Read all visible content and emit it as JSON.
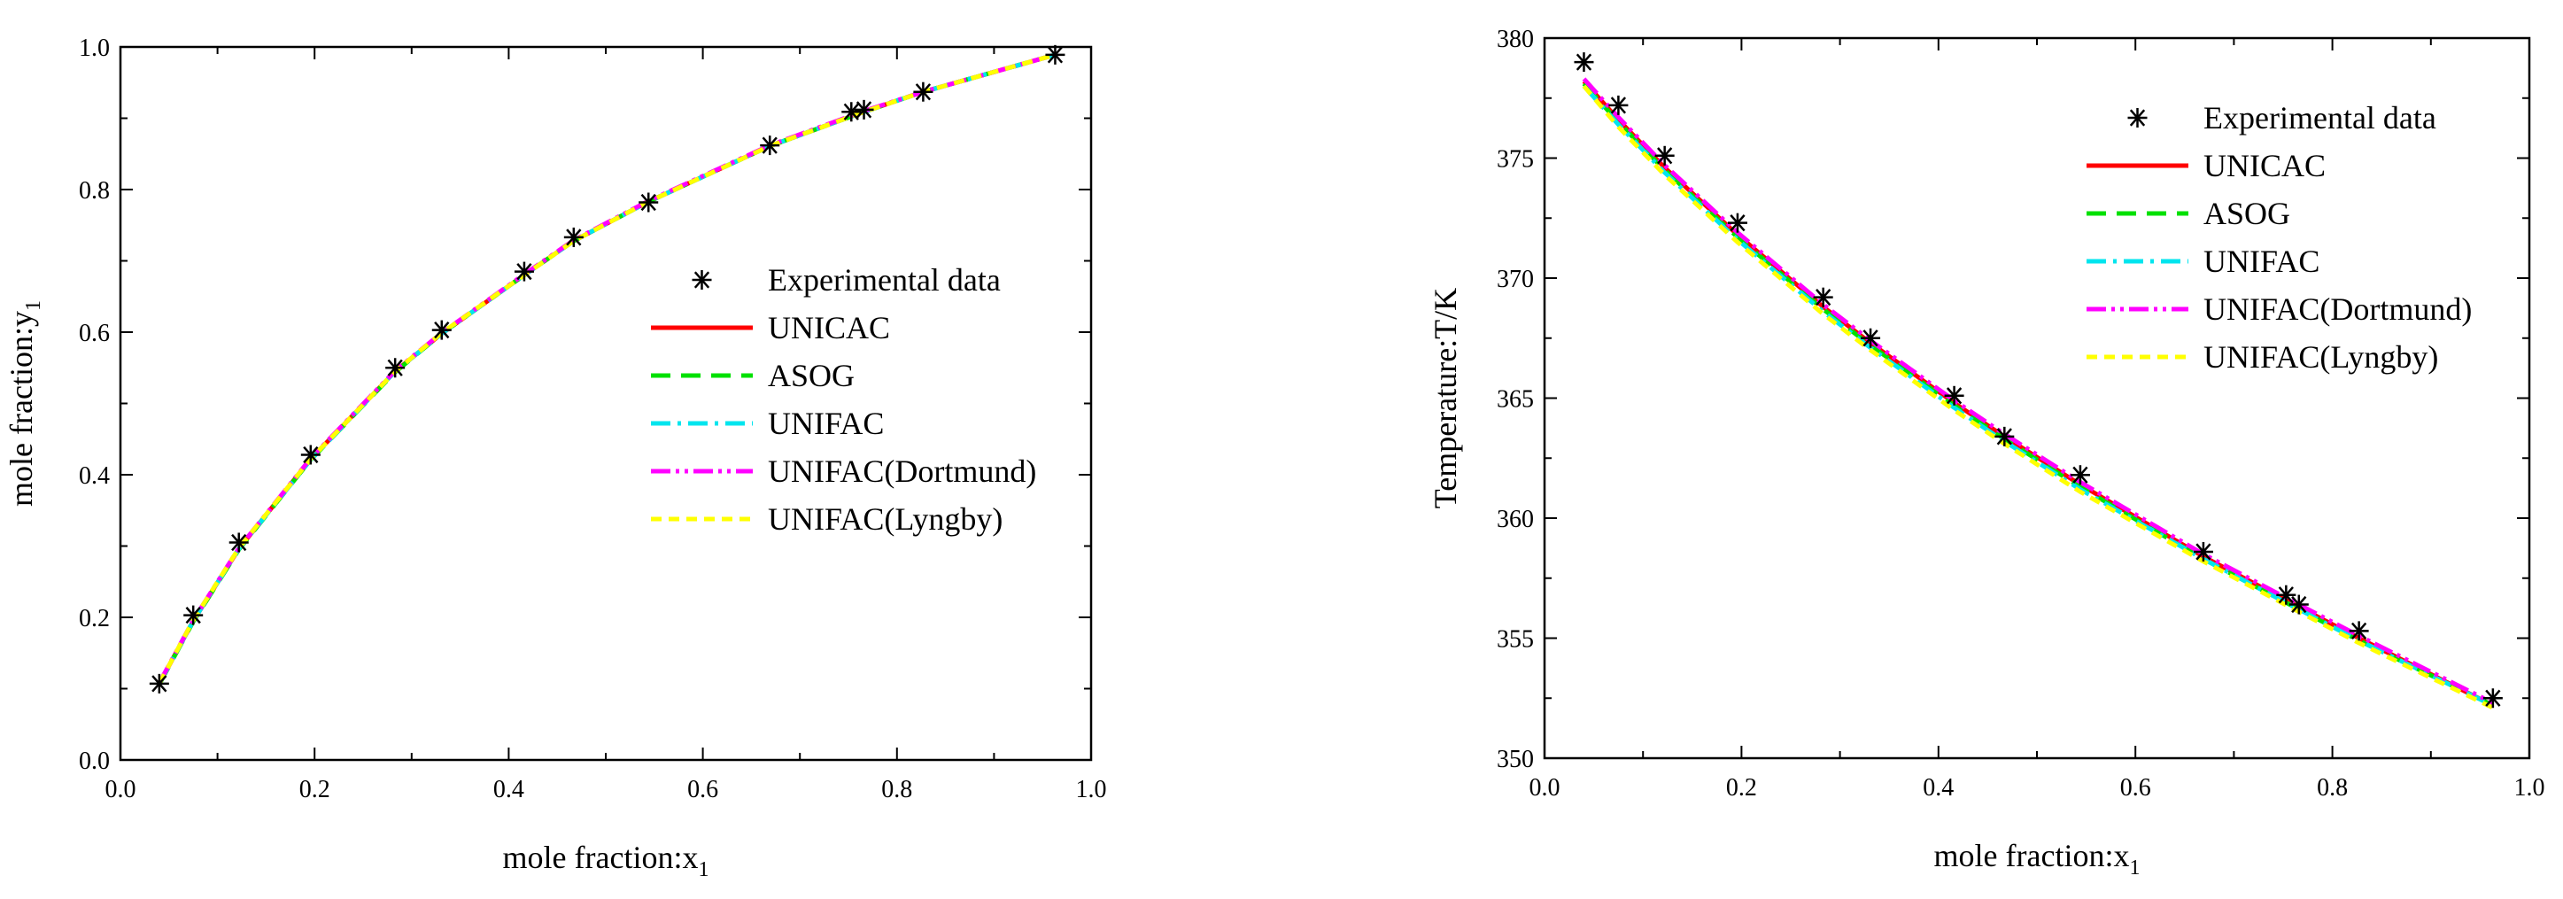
{
  "chart_data": [
    {
      "type": "line",
      "id": "xy",
      "xlabel": "mole fraction:x",
      "xlabel_sub": "1",
      "ylabel": "mole fraction:y",
      "ylabel_sub": "1",
      "xlim": [
        0.0,
        1.0
      ],
      "ylim": [
        0.0,
        1.0
      ],
      "x_ticks": [
        0.0,
        0.2,
        0.4,
        0.6,
        0.8,
        1.0
      ],
      "x_tick_labels": [
        "0.0",
        "0.2",
        "0.4",
        "0.6",
        "0.8",
        "1.0"
      ],
      "y_ticks": [
        0.0,
        0.2,
        0.4,
        0.6,
        0.8,
        1.0
      ],
      "y_tick_labels": [
        "0.0",
        "0.2",
        "0.4",
        "0.6",
        "0.8",
        "1.0"
      ],
      "grid": false,
      "legend_position": "center-right",
      "experimental": {
        "name": "Experimental data",
        "x": [
          0.04,
          0.075,
          0.122,
          0.196,
          0.283,
          0.331,
          0.416,
          0.467,
          0.544,
          0.669,
          0.753,
          0.766,
          0.827,
          0.963
        ],
        "y": [
          0.107,
          0.203,
          0.305,
          0.428,
          0.55,
          0.603,
          0.685,
          0.733,
          0.782,
          0.862,
          0.909,
          0.912,
          0.937,
          0.989
        ]
      },
      "series": [
        {
          "name": "UNICAC",
          "color": "#ff0000",
          "dash": "none",
          "x": [
            0.04,
            0.075,
            0.122,
            0.196,
            0.283,
            0.331,
            0.416,
            0.467,
            0.544,
            0.669,
            0.766,
            0.827,
            0.963
          ],
          "y": [
            0.107,
            0.195,
            0.296,
            0.422,
            0.545,
            0.598,
            0.68,
            0.728,
            0.783,
            0.861,
            0.909,
            0.937,
            0.989
          ]
        },
        {
          "name": "ASOG",
          "color": "#00e000",
          "dash": "22 12",
          "x": [
            0.04,
            0.075,
            0.122,
            0.196,
            0.283,
            0.331,
            0.416,
            0.467,
            0.544,
            0.669,
            0.766,
            0.827,
            0.963
          ],
          "y": [
            0.106,
            0.194,
            0.295,
            0.421,
            0.544,
            0.598,
            0.68,
            0.728,
            0.783,
            0.861,
            0.909,
            0.937,
            0.989
          ]
        },
        {
          "name": "UNIFAC",
          "color": "#00e5ee",
          "dash": "22 8 4 8",
          "x": [
            0.04,
            0.075,
            0.122,
            0.196,
            0.283,
            0.331,
            0.416,
            0.467,
            0.544,
            0.669,
            0.766,
            0.827,
            0.963
          ],
          "y": [
            0.107,
            0.195,
            0.296,
            0.421,
            0.545,
            0.598,
            0.68,
            0.728,
            0.783,
            0.861,
            0.909,
            0.937,
            0.989
          ]
        },
        {
          "name": "UNIFAC(Dortmund)",
          "color": "#ff00ff",
          "dash": "22 6 4 6 4 6",
          "x": [
            0.04,
            0.075,
            0.122,
            0.196,
            0.283,
            0.331,
            0.416,
            0.467,
            0.544,
            0.669,
            0.766,
            0.827,
            0.963
          ],
          "y": [
            0.108,
            0.196,
            0.297,
            0.423,
            0.546,
            0.599,
            0.681,
            0.729,
            0.784,
            0.862,
            0.91,
            0.937,
            0.989
          ]
        },
        {
          "name": "UNIFAC(Lyngby)",
          "color": "#ffff00",
          "dash": "12 8",
          "x": [
            0.04,
            0.075,
            0.122,
            0.196,
            0.283,
            0.331,
            0.416,
            0.467,
            0.544,
            0.669,
            0.766,
            0.827,
            0.963
          ],
          "y": [
            0.107,
            0.196,
            0.297,
            0.422,
            0.545,
            0.599,
            0.68,
            0.728,
            0.783,
            0.861,
            0.909,
            0.937,
            0.989
          ]
        }
      ]
    },
    {
      "type": "line",
      "id": "tx",
      "xlabel": "mole fraction:x",
      "xlabel_sub": "1",
      "ylabel": "Temperature:T/K",
      "ylabel_sub": "",
      "xlim": [
        0.0,
        1.0
      ],
      "ylim": [
        350,
        380
      ],
      "x_ticks": [
        0.0,
        0.2,
        0.4,
        0.6,
        0.8,
        1.0
      ],
      "x_tick_labels": [
        "0.0",
        "0.2",
        "0.4",
        "0.6",
        "0.8",
        "1.0"
      ],
      "y_ticks": [
        350,
        355,
        360,
        365,
        370,
        375,
        380
      ],
      "y_tick_labels": [
        "350",
        "355",
        "360",
        "365",
        "370",
        "375",
        "380"
      ],
      "grid": false,
      "legend_position": "top-right",
      "experimental": {
        "name": "Experimental data",
        "x": [
          0.04,
          0.075,
          0.122,
          0.196,
          0.283,
          0.331,
          0.416,
          0.467,
          0.544,
          0.669,
          0.753,
          0.766,
          0.827,
          0.963
        ],
        "y": [
          379.0,
          377.2,
          375.1,
          372.3,
          369.2,
          367.5,
          365.1,
          363.4,
          361.8,
          358.6,
          356.8,
          356.4,
          355.3,
          352.5
        ]
      },
      "series": [
        {
          "name": "UNICAC",
          "color": "#ff0000",
          "dash": "none",
          "x": [
            0.04,
            0.075,
            0.122,
            0.196,
            0.283,
            0.331,
            0.416,
            0.467,
            0.544,
            0.669,
            0.766,
            0.827,
            0.963
          ],
          "y": [
            378.2,
            376.6,
            374.6,
            371.8,
            368.8,
            367.3,
            364.8,
            363.4,
            361.4,
            358.4,
            356.3,
            355.0,
            352.2
          ]
        },
        {
          "name": "ASOG",
          "color": "#00e000",
          "dash": "22 12",
          "x": [
            0.04,
            0.075,
            0.122,
            0.196,
            0.283,
            0.331,
            0.416,
            0.467,
            0.544,
            0.669,
            0.766,
            0.827,
            0.963
          ],
          "y": [
            378.1,
            376.5,
            374.5,
            371.7,
            368.7,
            367.2,
            364.7,
            363.3,
            361.3,
            358.3,
            356.2,
            354.9,
            352.2
          ]
        },
        {
          "name": "UNIFAC",
          "color": "#00e5ee",
          "dash": "22 8 4 8",
          "x": [
            0.04,
            0.075,
            0.122,
            0.196,
            0.283,
            0.331,
            0.416,
            0.467,
            0.544,
            0.669,
            0.766,
            0.827,
            0.963
          ],
          "y": [
            378.0,
            376.4,
            374.4,
            371.6,
            368.6,
            367.1,
            364.6,
            363.2,
            361.2,
            358.3,
            356.2,
            354.9,
            352.2
          ]
        },
        {
          "name": "UNIFAC(Dortmund)",
          "color": "#ff00ff",
          "dash": "22 6 4 6 4 6",
          "x": [
            0.04,
            0.075,
            0.122,
            0.196,
            0.283,
            0.331,
            0.416,
            0.467,
            0.544,
            0.669,
            0.766,
            0.827,
            0.963
          ],
          "y": [
            378.3,
            376.7,
            374.7,
            371.9,
            368.9,
            367.4,
            364.9,
            363.5,
            361.5,
            358.5,
            356.4,
            355.1,
            352.3
          ]
        },
        {
          "name": "UNIFAC(Lyngby)",
          "color": "#ffff00",
          "dash": "12 8",
          "x": [
            0.04,
            0.075,
            0.122,
            0.196,
            0.283,
            0.331,
            0.416,
            0.467,
            0.544,
            0.669,
            0.766,
            0.827,
            0.963
          ],
          "y": [
            378.0,
            376.3,
            374.3,
            371.5,
            368.5,
            367.0,
            364.5,
            363.1,
            361.1,
            358.2,
            356.1,
            354.8,
            352.1
          ]
        }
      ]
    }
  ]
}
